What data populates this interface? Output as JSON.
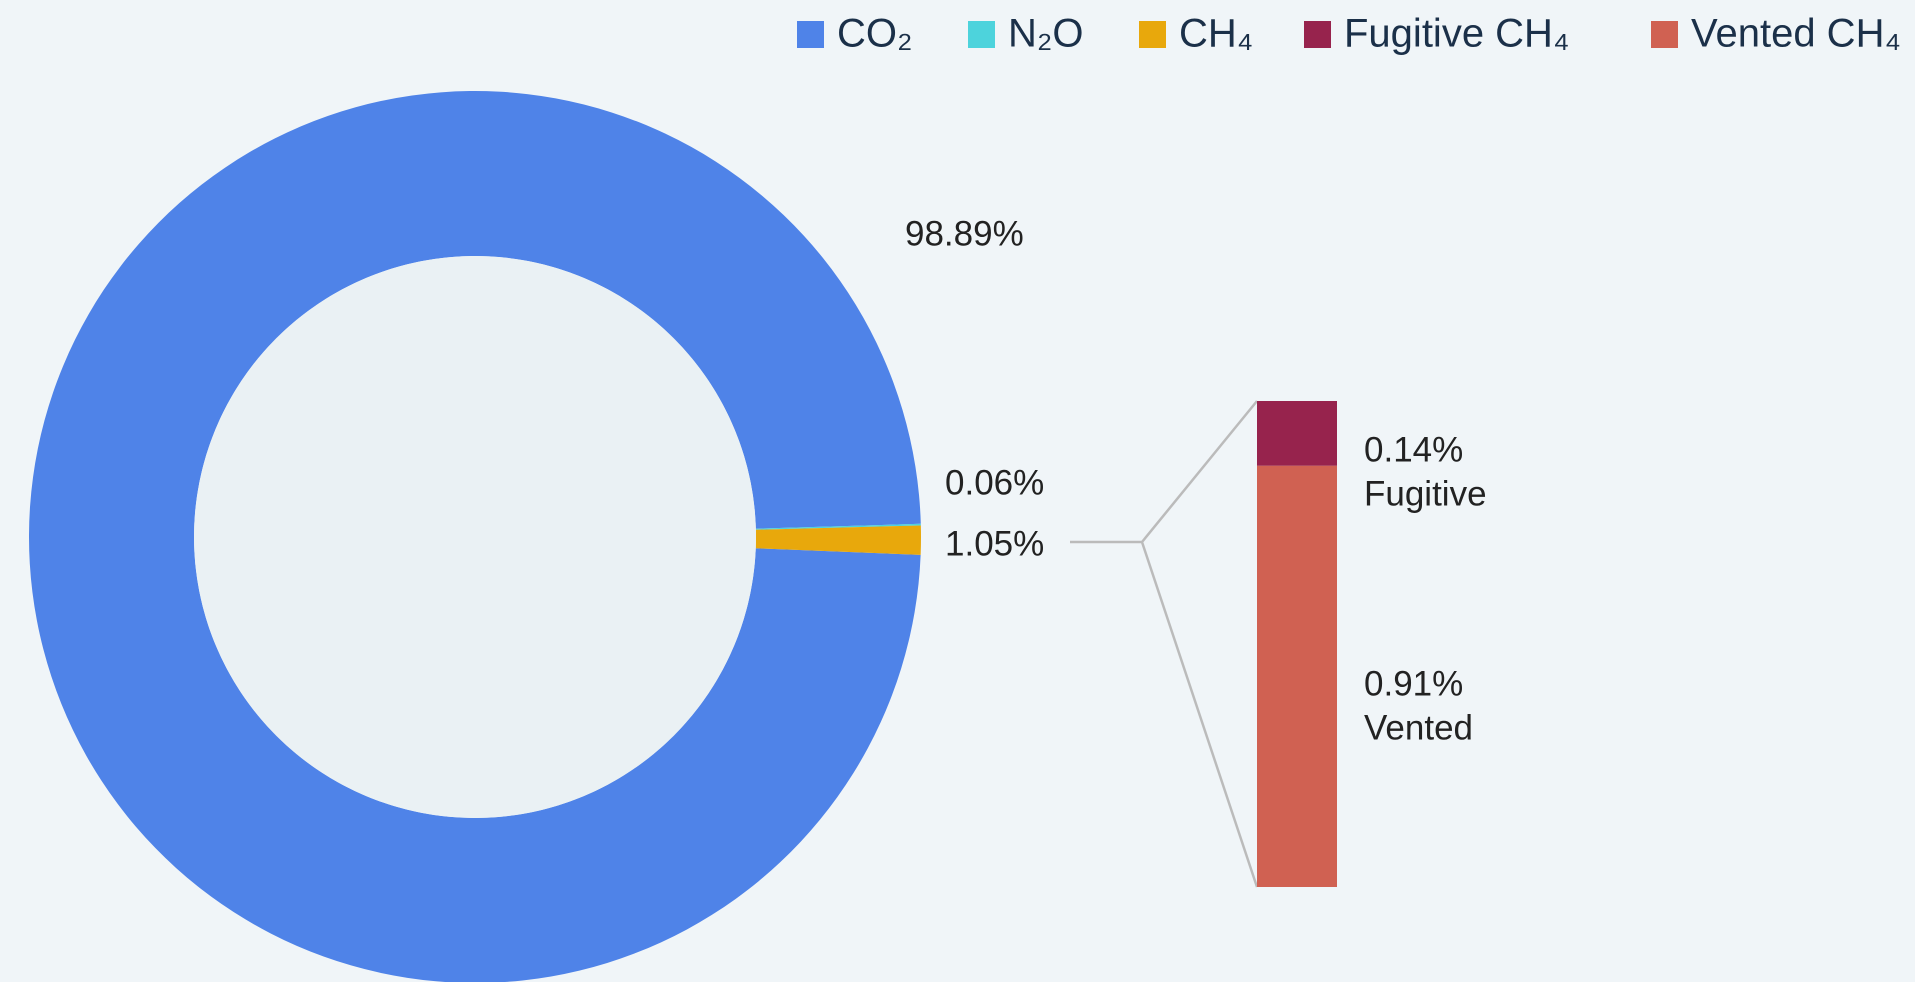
{
  "chart_data": {
    "type": "pie",
    "donut": true,
    "categories": [
      "CO₂",
      "N₂O",
      "CH₄"
    ],
    "values": [
      98.89,
      0.06,
      1.05
    ],
    "value_labels": [
      "98.89%",
      "0.06%",
      "1.05%"
    ],
    "colors": [
      "#4f83e8",
      "#4dd3dc",
      "#e8a80c"
    ],
    "breakdown": {
      "type": "bar",
      "categories": [
        "Fugitive",
        "Vented"
      ],
      "legend_names": [
        "Fugitive CH₄",
        "Vented CH₄"
      ],
      "values": [
        0.14,
        0.91
      ],
      "value_labels": [
        "0.14%",
        "0.91%"
      ],
      "colors": [
        "#97234d",
        "#d06152"
      ]
    },
    "legend": "top-right"
  }
}
